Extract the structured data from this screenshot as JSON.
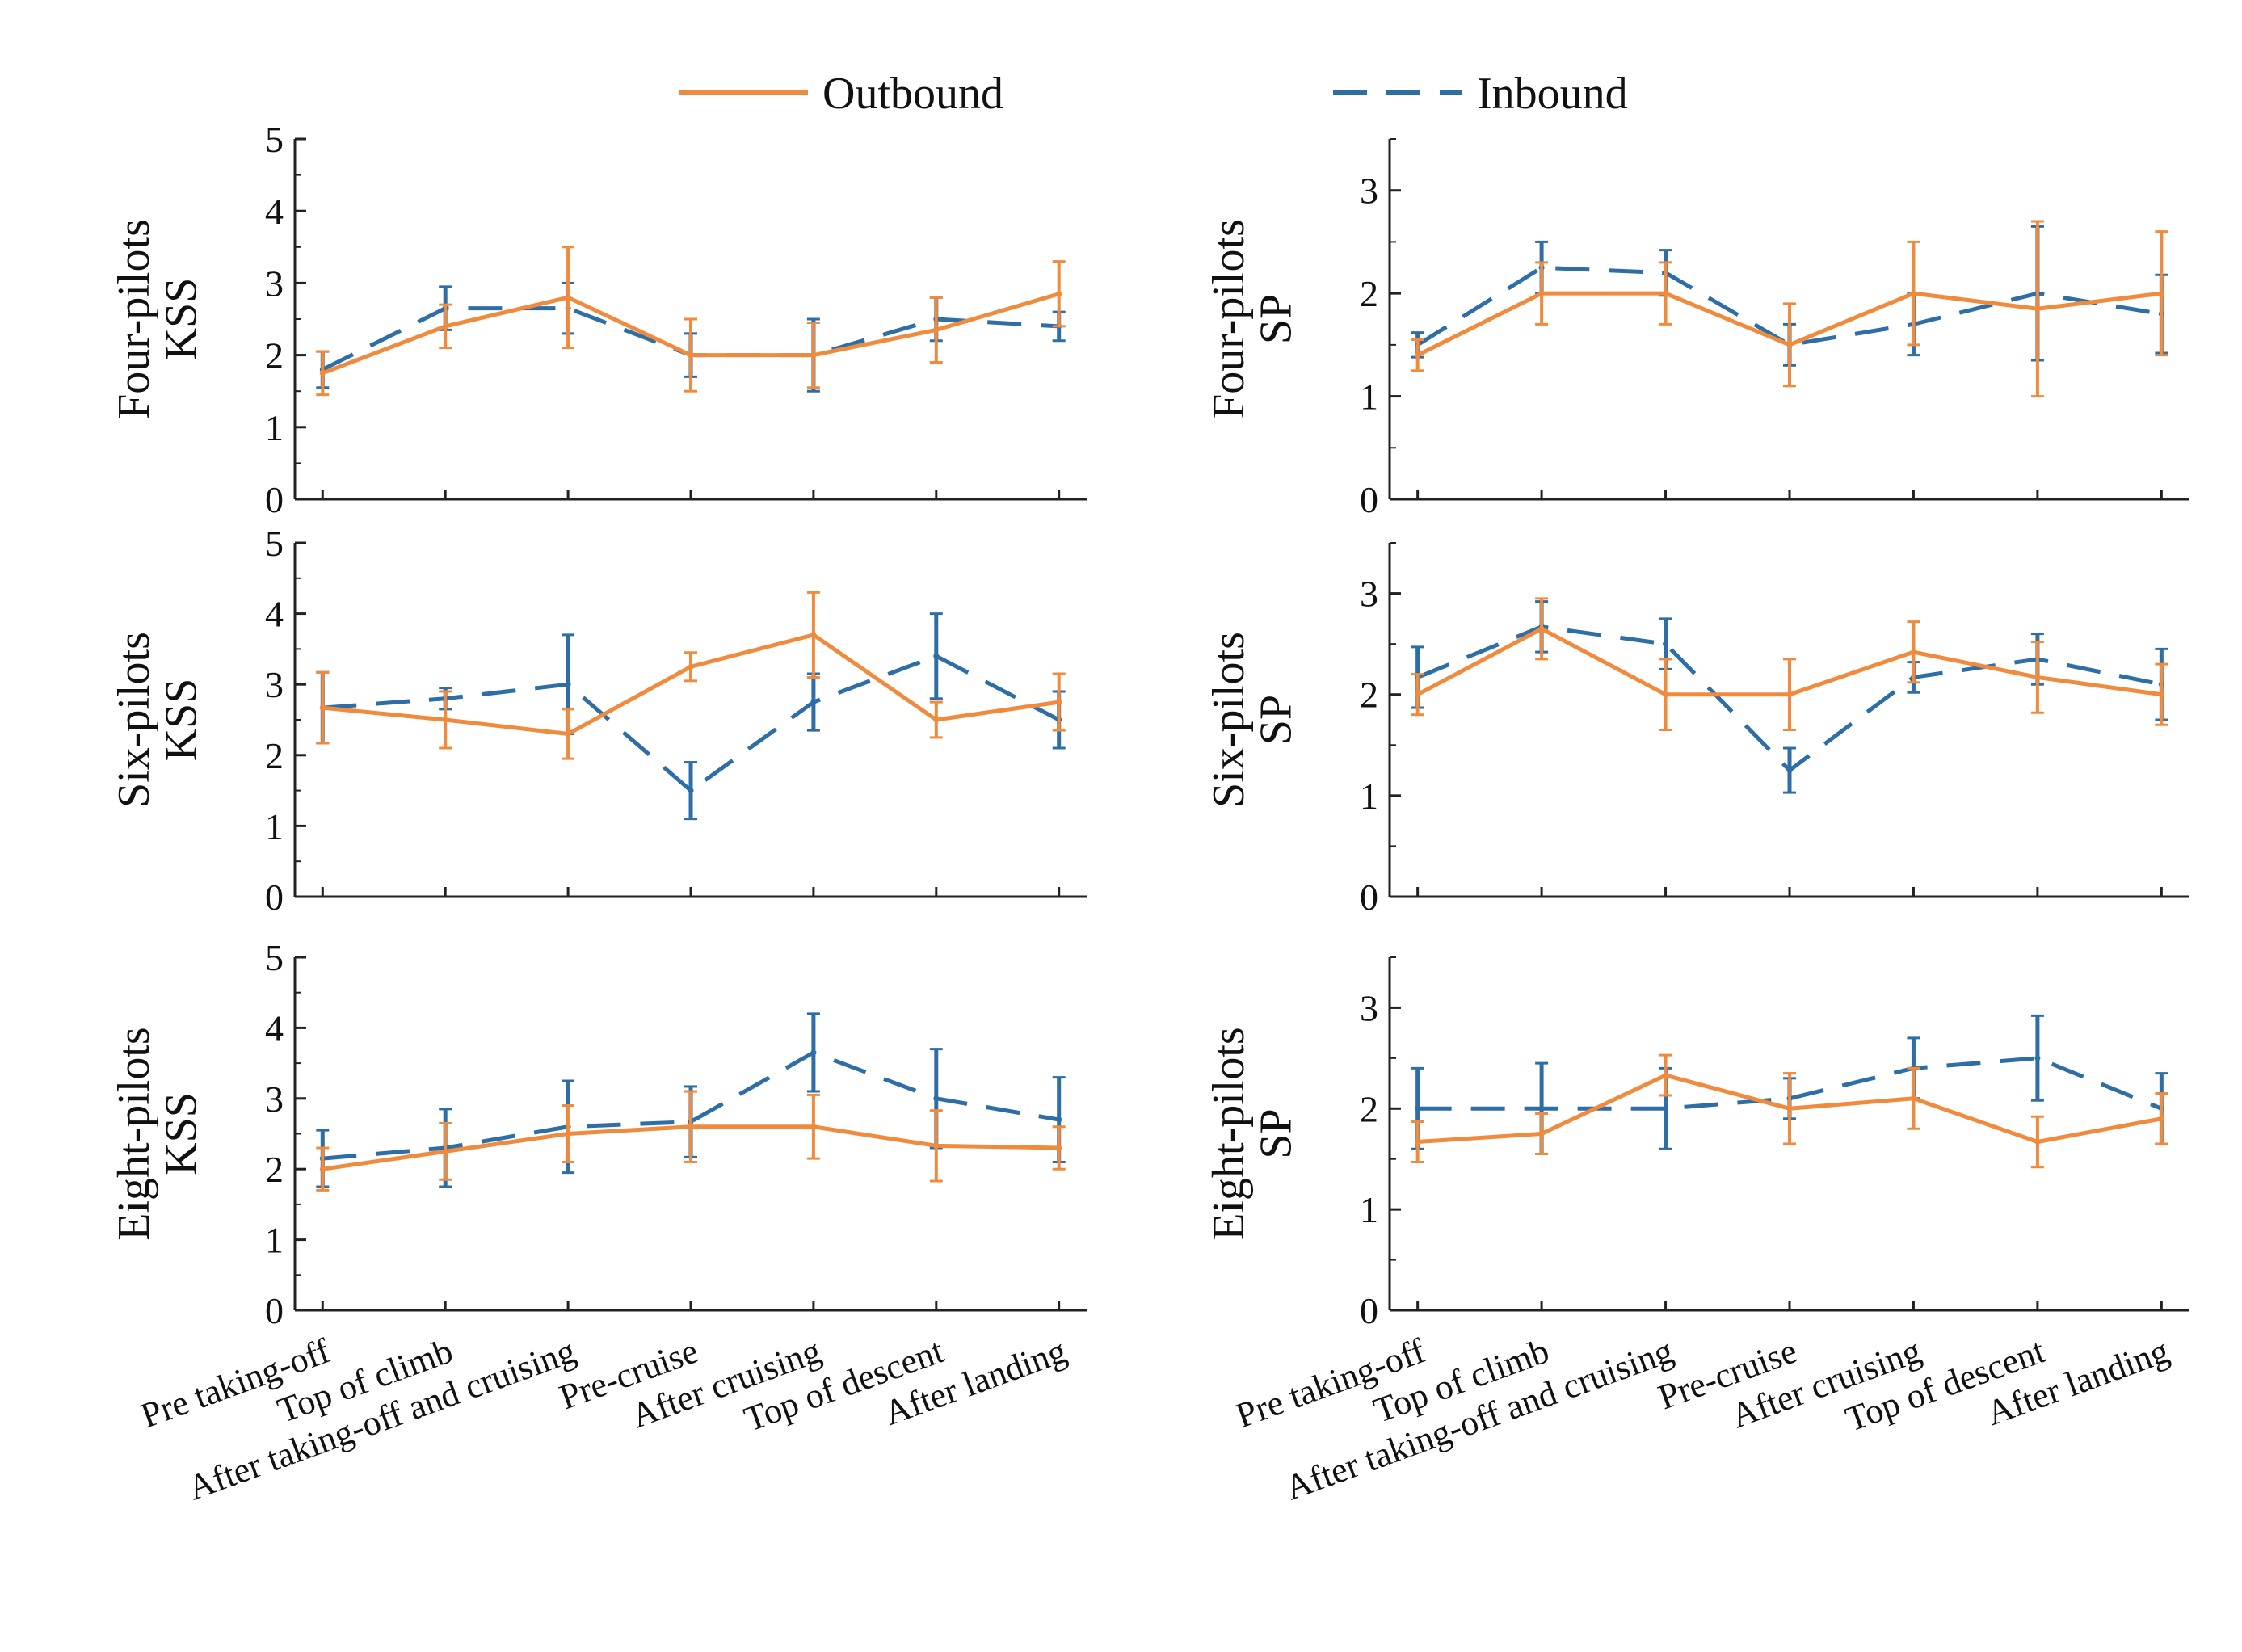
{
  "colors": {
    "outbound": "#F08A3C",
    "inbound": "#2E6EA6",
    "axis": "#222222"
  },
  "legend": {
    "outbound_label": "Outbound",
    "inbound_label": "Inbound"
  },
  "chart_data": [
    {
      "type": "line",
      "id": "kss-four",
      "ylabel_top": "Four-pilots",
      "ylabel_bottom": "KSS",
      "ylim": [
        0,
        5
      ],
      "yticks": [
        0,
        1,
        2,
        3,
        4,
        5
      ],
      "categories": [
        "Pre taking-off",
        "Top of climb",
        "After taking-off and cruising",
        "Pre-cruise",
        "After cruising",
        "Top of descent",
        "After landing"
      ],
      "series": [
        {
          "name": "Outbound",
          "values": [
            1.75,
            2.4,
            2.8,
            2.0,
            2.0,
            2.35,
            2.85
          ],
          "err": [
            0.3,
            0.3,
            0.7,
            0.5,
            0.45,
            0.45,
            0.45
          ]
        },
        {
          "name": "Inbound",
          "values": [
            1.8,
            2.65,
            2.65,
            2.0,
            2.0,
            2.5,
            2.4
          ],
          "err": [
            0.25,
            0.3,
            0.35,
            0.3,
            0.5,
            0.3,
            0.2
          ]
        }
      ]
    },
    {
      "type": "line",
      "id": "sp-four",
      "ylabel_top": "Four-pilots",
      "ylabel_bottom": "SP",
      "ylim": [
        0,
        3.5
      ],
      "yticks": [
        0,
        1,
        2,
        3
      ],
      "categories": [
        "Pre taking-off",
        "Top of climb",
        "After taking-off and cruising",
        "Pre-cruise",
        "After cruising",
        "Top of descent",
        "After landing"
      ],
      "series": [
        {
          "name": "Outbound",
          "values": [
            1.4,
            2.0,
            2.0,
            1.5,
            2.0,
            1.85,
            2.0
          ],
          "err": [
            0.15,
            0.3,
            0.3,
            0.4,
            0.5,
            0.85,
            0.6
          ]
        },
        {
          "name": "Inbound",
          "values": [
            1.5,
            2.25,
            2.2,
            1.5,
            1.7,
            2.0,
            1.8
          ],
          "err": [
            0.12,
            0.25,
            0.22,
            0.2,
            0.3,
            0.65,
            0.38
          ]
        }
      ]
    },
    {
      "type": "line",
      "id": "kss-six",
      "ylabel_top": "Six-pilots",
      "ylabel_bottom": "KSS",
      "ylim": [
        0,
        5
      ],
      "yticks": [
        0,
        1,
        2,
        3,
        4,
        5
      ],
      "categories": [
        "Pre taking-off",
        "Top of climb",
        "After taking-off and cruising",
        "Pre-cruise",
        "After cruising",
        "Top of descent",
        "After landing"
      ],
      "series": [
        {
          "name": "Outbound",
          "values": [
            2.67,
            2.5,
            2.3,
            3.25,
            3.7,
            2.5,
            2.75
          ],
          "err": [
            0.5,
            0.4,
            0.35,
            0.2,
            0.6,
            0.25,
            0.4
          ]
        },
        {
          "name": "Inbound",
          "values": [
            2.67,
            2.8,
            3.0,
            1.5,
            2.75,
            3.4,
            2.5
          ],
          "err": [
            0.5,
            0.15,
            0.7,
            0.4,
            0.4,
            0.6,
            0.4
          ]
        }
      ]
    },
    {
      "type": "line",
      "id": "sp-six",
      "ylabel_top": "Six-pilots",
      "ylabel_bottom": "SP",
      "ylim": [
        0,
        3.5
      ],
      "yticks": [
        0,
        1,
        2,
        3
      ],
      "categories": [
        "Pre taking-off",
        "Top of climb",
        "After taking-off and cruising",
        "Pre-cruise",
        "After cruising",
        "Top of descent",
        "After landing"
      ],
      "series": [
        {
          "name": "Outbound",
          "values": [
            2.0,
            2.65,
            2.0,
            2.0,
            2.42,
            2.17,
            2.0
          ],
          "err": [
            0.2,
            0.3,
            0.35,
            0.35,
            0.3,
            0.35,
            0.3
          ]
        },
        {
          "name": "Inbound",
          "values": [
            2.17,
            2.67,
            2.5,
            1.25,
            2.17,
            2.35,
            2.1
          ],
          "err": [
            0.3,
            0.25,
            0.25,
            0.22,
            0.15,
            0.25,
            0.35
          ]
        }
      ]
    },
    {
      "type": "line",
      "id": "kss-eight",
      "ylabel_top": "Eight-pilots",
      "ylabel_bottom": "KSS",
      "ylim": [
        0,
        5
      ],
      "yticks": [
        0,
        1,
        2,
        3,
        4,
        5
      ],
      "categories": [
        "Pre taking-off",
        "Top of climb",
        "After taking-off and cruising",
        "Pre-cruise",
        "After cruising",
        "Top of descent",
        "After landing"
      ],
      "series": [
        {
          "name": "Outbound",
          "values": [
            2.0,
            2.25,
            2.5,
            2.6,
            2.6,
            2.33,
            2.3
          ],
          "err": [
            0.3,
            0.4,
            0.4,
            0.5,
            0.45,
            0.5,
            0.3
          ]
        },
        {
          "name": "Inbound",
          "values": [
            2.15,
            2.3,
            2.6,
            2.67,
            3.65,
            3.0,
            2.7
          ],
          "err": [
            0.4,
            0.55,
            0.65,
            0.5,
            0.55,
            0.7,
            0.6
          ]
        }
      ]
    },
    {
      "type": "line",
      "id": "sp-eight",
      "ylabel_top": "Eight-pilots",
      "ylabel_bottom": "SP",
      "ylim": [
        0,
        3.5
      ],
      "yticks": [
        0,
        1,
        2,
        3
      ],
      "categories": [
        "Pre taking-off",
        "Top of climb",
        "After taking-off and cruising",
        "Pre-cruise",
        "After cruising",
        "Top of descent",
        "After landing"
      ],
      "series": [
        {
          "name": "Outbound",
          "values": [
            1.67,
            1.75,
            2.33,
            2.0,
            2.1,
            1.67,
            1.9
          ],
          "err": [
            0.2,
            0.2,
            0.2,
            0.35,
            0.3,
            0.25,
            0.25
          ]
        },
        {
          "name": "Inbound",
          "values": [
            2.0,
            2.0,
            2.0,
            2.1,
            2.4,
            2.5,
            2.0
          ],
          "err": [
            0.4,
            0.45,
            0.4,
            0.2,
            0.3,
            0.42,
            0.35
          ]
        }
      ]
    }
  ]
}
